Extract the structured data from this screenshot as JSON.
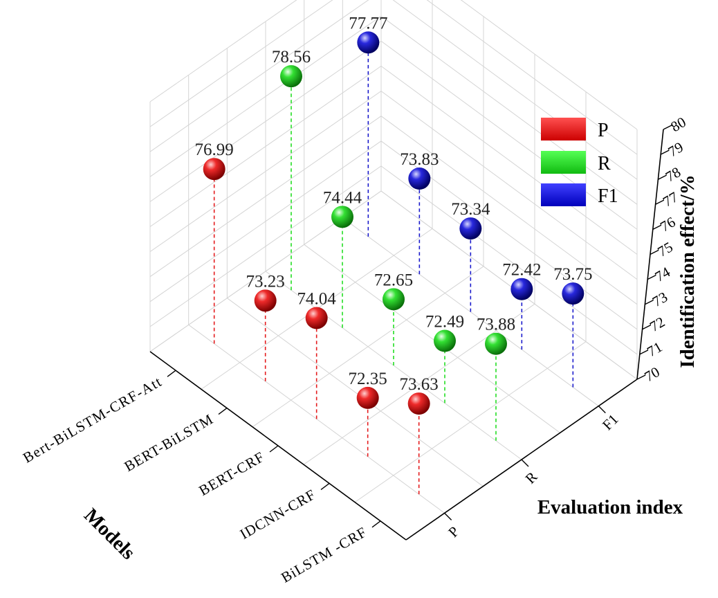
{
  "chart_data": {
    "type": "scatter",
    "models": [
      "Bert-BiLSTM-CRF-Att",
      "BERT-BiLSTM",
      "BERT-CRF",
      "IDCNN-CRF",
      "BiLSTM -CRF"
    ],
    "indices": [
      "P",
      "R",
      "F1"
    ],
    "series": [
      {
        "name": "P",
        "values": [
          76.99,
          73.23,
          74.04,
          72.35,
          73.63
        ]
      },
      {
        "name": "R",
        "values": [
          78.56,
          74.44,
          72.65,
          72.49,
          73.88
        ]
      },
      {
        "name": "F1",
        "values": [
          77.77,
          73.83,
          73.34,
          72.42,
          73.75
        ]
      }
    ],
    "value_labels": [
      [
        "76.99",
        "73.23",
        "74.04",
        "72.35",
        "73.63"
      ],
      [
        "78.56",
        "74.44",
        "72.65",
        "72.49",
        "73.88"
      ],
      [
        "77.77",
        "73.83",
        "73.34",
        "72.42",
        "73.75"
      ]
    ],
    "zlabel": "Identification effect/%",
    "xlabel": "Evaluation index",
    "ylabel": "Models",
    "zlim": [
      70,
      80
    ],
    "zticks": [
      "70",
      "71",
      "72",
      "73",
      "74",
      "75",
      "76",
      "77",
      "78",
      "79",
      "80"
    ],
    "grid": true,
    "legend_position": "top-right",
    "colors": {
      "P": "#e41a1c",
      "R": "#22dd22",
      "F1": "#1a1acc"
    }
  }
}
